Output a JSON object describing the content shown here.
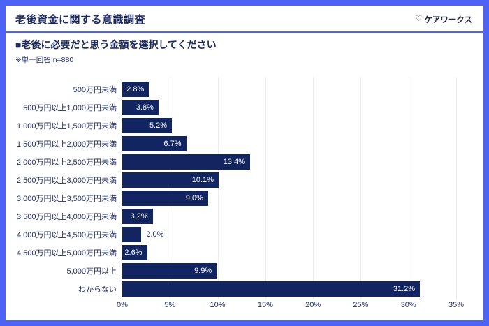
{
  "header": {
    "title": "老後資金に関する意識調査",
    "logo_icon": "♡",
    "logo_text": "ケアワークス"
  },
  "section": {
    "question": "■老後に必要だと思う金額を選択してください",
    "note": "※単一回答 n=880"
  },
  "colors": {
    "accent_blue": "#4d63f5",
    "navy_text": "#1d2a5e",
    "bar_navy": "#132560",
    "gridline": "#ececec",
    "value_inside": "#ffffff",
    "card_background": "#ffffff"
  },
  "chart_data": {
    "type": "bar",
    "orientation": "horizontal",
    "title": "老後に必要だと思う金額を選択してください",
    "categories": [
      "500万円未満",
      "500万円以上1,000万円未満",
      "1,000万円以上1,500万円未満",
      "1,500万円以上2,000万円未満",
      "2,000万円以上2,500万円未満",
      "2,500万円以上3,000万円未満",
      "3,000万円以上3,500万円未満",
      "3,500万円以上4,000万円未満",
      "4,000万円以上4,500万円未満",
      "4,500万円以上5,000万円未満",
      "5,000万円以上",
      "わからない"
    ],
    "values": [
      2.8,
      3.8,
      5.2,
      6.7,
      13.4,
      10.1,
      9.0,
      3.2,
      2.0,
      2.6,
      9.9,
      31.2
    ],
    "value_labels": [
      "2.8%",
      "3.8%",
      "5.2%",
      "6.7%",
      "13.4%",
      "10.1%",
      "9.0%",
      "3.2%",
      "2.0%",
      "2.6%",
      "9.9%",
      "31.2%"
    ],
    "xlabel": "",
    "ylabel": "",
    "xlim": [
      0,
      35
    ],
    "x_tick_values": [
      0,
      5,
      10,
      15,
      20,
      25,
      30,
      35
    ],
    "x_tick_labels": [
      "0%",
      "5%",
      "10%",
      "15%",
      "20%",
      "25%",
      "30%",
      "35%"
    ],
    "grid": true,
    "legend_position": "none"
  }
}
